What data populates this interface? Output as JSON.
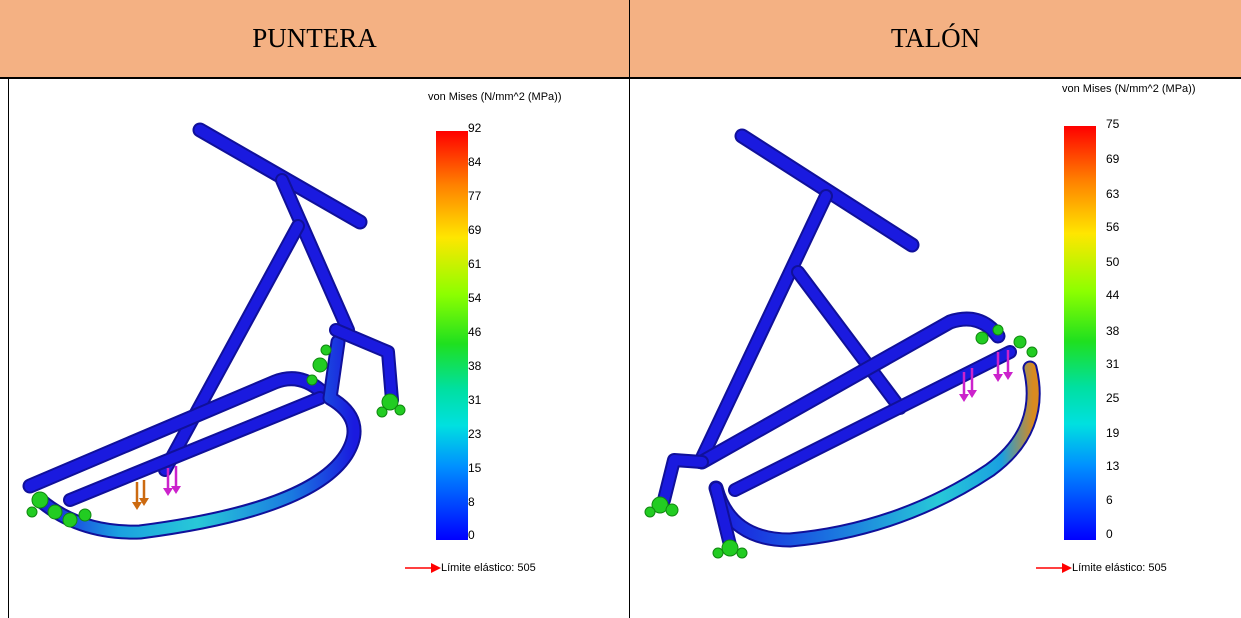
{
  "panels": [
    {
      "title": "PUNTERA",
      "legend_title": "von Mises (N/mm^2 (MPa))",
      "ticks": [
        "92",
        "84",
        "77",
        "69",
        "61",
        "54",
        "46",
        "38",
        "31",
        "23",
        "15",
        "8",
        "0"
      ],
      "yield_label": "Límite elástico: 505"
    },
    {
      "title": "TALÓN",
      "legend_title": "von Mises (N/mm^2 (MPa))",
      "ticks": [
        "75",
        "69",
        "63",
        "56",
        "50",
        "44",
        "38",
        "31",
        "25",
        "19",
        "13",
        "6",
        "0"
      ],
      "yield_label": "Límite elástico: 505"
    }
  ],
  "colors": {
    "header_bg": "#f4b183",
    "frame_tube": "#1a1adf",
    "fixture": "#22cc22",
    "load_arrow": "#cc22cc",
    "yield_arrow": "#ff0000"
  }
}
